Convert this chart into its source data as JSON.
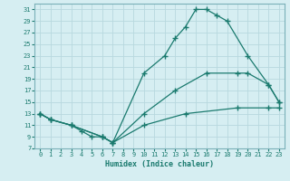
{
  "xlabel": "Humidex (Indice chaleur)",
  "bg_color": "#d6eef2",
  "grid_color": "#b8d8de",
  "line_color": "#1a7a6e",
  "xlim": [
    -0.5,
    23.5
  ],
  "ylim": [
    7,
    32
  ],
  "xticks": [
    0,
    1,
    2,
    3,
    4,
    5,
    6,
    7,
    8,
    9,
    10,
    11,
    12,
    13,
    14,
    15,
    16,
    17,
    18,
    19,
    20,
    21,
    22,
    23
  ],
  "yticks": [
    7,
    9,
    11,
    13,
    15,
    17,
    19,
    21,
    23,
    25,
    27,
    29,
    31
  ],
  "line1_x": [
    0,
    1,
    3,
    4,
    5,
    6,
    7,
    10,
    12,
    13,
    14,
    15,
    16,
    17,
    18,
    20,
    22,
    23
  ],
  "line1_y": [
    13,
    12,
    11,
    10,
    9,
    9,
    8,
    20,
    23,
    26,
    28,
    31,
    31,
    30,
    29,
    23,
    18,
    15
  ],
  "line2_x": [
    0,
    1,
    3,
    6,
    7,
    10,
    13,
    16,
    19,
    20,
    22,
    23
  ],
  "line2_y": [
    13,
    12,
    11,
    9,
    8,
    13,
    17,
    20,
    20,
    20,
    18,
    15
  ],
  "line3_x": [
    0,
    1,
    3,
    6,
    7,
    10,
    14,
    19,
    22,
    23
  ],
  "line3_y": [
    13,
    12,
    11,
    9,
    8,
    11,
    13,
    14,
    14,
    14
  ]
}
